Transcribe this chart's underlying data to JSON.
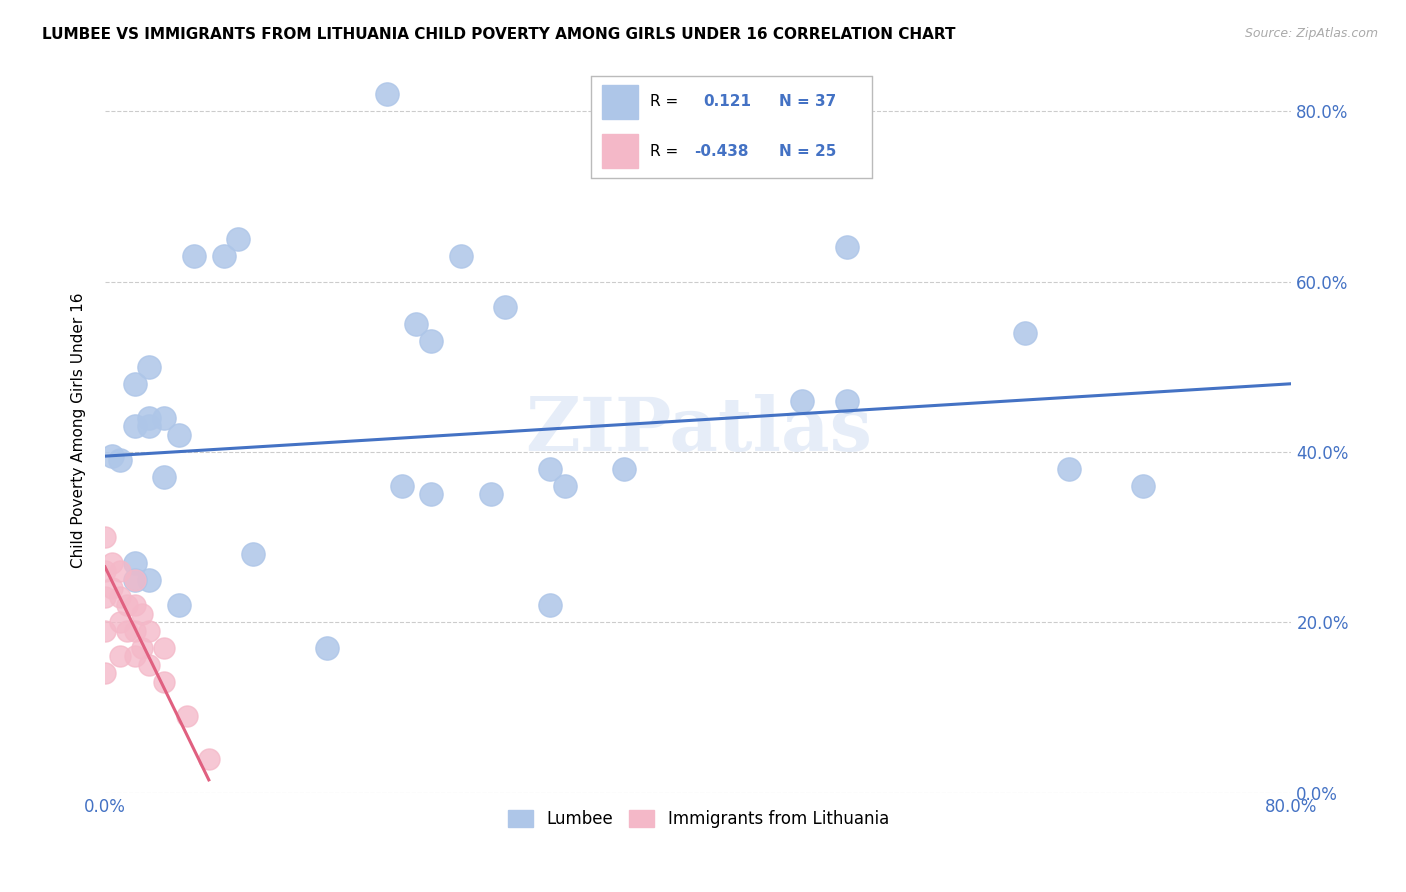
{
  "title": "LUMBEE VS IMMIGRANTS FROM LITHUANIA CHILD POVERTY AMONG GIRLS UNDER 16 CORRELATION CHART",
  "source": "Source: ZipAtlas.com",
  "ylabel": "Child Poverty Among Girls Under 16",
  "xlim": [
    0.0,
    0.8
  ],
  "ylim": [
    0.0,
    0.85
  ],
  "xticks": [
    0.0,
    0.1,
    0.2,
    0.3,
    0.4,
    0.5,
    0.6,
    0.7,
    0.8
  ],
  "yticks": [
    0.0,
    0.2,
    0.4,
    0.6,
    0.8
  ],
  "xticklabels": [
    "0.0%",
    "",
    "",
    "",
    "",
    "",
    "",
    "",
    "80.0%"
  ],
  "yticklabels_right": [
    "0.0%",
    "20.0%",
    "40.0%",
    "60.0%",
    "80.0%"
  ],
  "lumbee_R": 0.121,
  "lumbee_N": 37,
  "lithuania_R": -0.438,
  "lithuania_N": 25,
  "lumbee_color": "#aec6e8",
  "lithuania_color": "#f4b8c8",
  "lumbee_line_color": "#4472c4",
  "lithuania_line_color": "#e06080",
  "watermark": "ZIPatlas",
  "lumbee_points_x": [
    0.005,
    0.01,
    0.02,
    0.02,
    0.02,
    0.03,
    0.03,
    0.03,
    0.04,
    0.04,
    0.05,
    0.06,
    0.08,
    0.09,
    0.19,
    0.21,
    0.22,
    0.24,
    0.27,
    0.3,
    0.31,
    0.35,
    0.47,
    0.5,
    0.5,
    0.62,
    0.7,
    0.02,
    0.03,
    0.05,
    0.1,
    0.15,
    0.2,
    0.22,
    0.26,
    0.3,
    0.65
  ],
  "lumbee_points_y": [
    0.395,
    0.39,
    0.27,
    0.43,
    0.48,
    0.5,
    0.43,
    0.44,
    0.37,
    0.44,
    0.42,
    0.63,
    0.63,
    0.65,
    0.82,
    0.55,
    0.53,
    0.63,
    0.57,
    0.38,
    0.36,
    0.38,
    0.46,
    0.46,
    0.64,
    0.54,
    0.36,
    0.25,
    0.25,
    0.22,
    0.28,
    0.17,
    0.36,
    0.35,
    0.35,
    0.22,
    0.38
  ],
  "lithuania_points_x": [
    0.0,
    0.0,
    0.0,
    0.0,
    0.0,
    0.005,
    0.005,
    0.01,
    0.01,
    0.01,
    0.01,
    0.015,
    0.015,
    0.02,
    0.02,
    0.02,
    0.02,
    0.025,
    0.025,
    0.03,
    0.03,
    0.04,
    0.04,
    0.055,
    0.07
  ],
  "lithuania_points_y": [
    0.3,
    0.26,
    0.23,
    0.19,
    0.14,
    0.27,
    0.24,
    0.26,
    0.23,
    0.2,
    0.16,
    0.22,
    0.19,
    0.25,
    0.22,
    0.19,
    0.16,
    0.21,
    0.17,
    0.19,
    0.15,
    0.17,
    0.13,
    0.09,
    0.04
  ],
  "lumbee_line_x": [
    0.0,
    0.8
  ],
  "lumbee_line_y": [
    0.395,
    0.48
  ],
  "lithuania_line_x": [
    0.0,
    0.07
  ],
  "lithuania_line_y": [
    0.265,
    0.015
  ]
}
